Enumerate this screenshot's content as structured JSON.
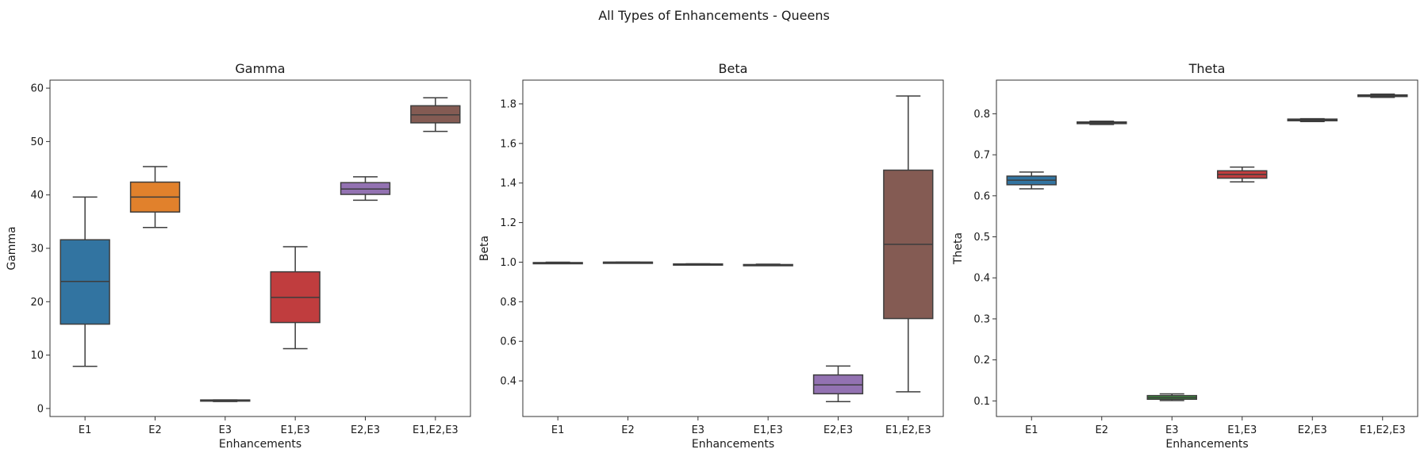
{
  "suptitle": "All Types of Enhancements - Queens",
  "chart_data": [
    {
      "type": "box",
      "title": "Gamma",
      "xlabel": "Enhancements",
      "ylabel": "Gamma",
      "ylim": [
        -1.5,
        61.5
      ],
      "yticks": [
        0,
        10,
        20,
        30,
        40,
        50,
        60
      ],
      "categories": [
        "E1",
        "E2",
        "E3",
        "E1,E3",
        "E2,E3",
        "E1,E2,E3"
      ],
      "boxes": [
        {
          "whislo": 7.9,
          "q1": 15.8,
          "med": 23.8,
          "q3": 31.6,
          "whishi": 39.6,
          "color": "#3274a1"
        },
        {
          "whislo": 33.9,
          "q1": 36.8,
          "med": 39.6,
          "q3": 42.4,
          "whishi": 45.3,
          "color": "#e1812c"
        },
        {
          "whislo": 1.3,
          "q1": 1.4,
          "med": 1.5,
          "q3": 1.6,
          "whishi": 1.6,
          "color": "#3a923a"
        },
        {
          "whislo": 11.2,
          "q1": 16.1,
          "med": 20.8,
          "q3": 25.6,
          "whishi": 30.3,
          "color": "#c03d3e"
        },
        {
          "whislo": 39.0,
          "q1": 40.1,
          "med": 41.1,
          "q3": 42.3,
          "whishi": 43.4,
          "color": "#9372b2"
        },
        {
          "whislo": 51.9,
          "q1": 53.5,
          "med": 55.0,
          "q3": 56.7,
          "whishi": 58.2,
          "color": "#845b53"
        }
      ]
    },
    {
      "type": "box",
      "title": "Beta",
      "xlabel": "Enhancements",
      "ylabel": "Beta",
      "ylim": [
        0.22,
        1.92
      ],
      "yticks": [
        0.4,
        0.6,
        0.8,
        1.0,
        1.2,
        1.4,
        1.6,
        1.8
      ],
      "categories": [
        "E1",
        "E2",
        "E3",
        "E1,E3",
        "E2,E3",
        "E1,E2,E3"
      ],
      "boxes": [
        {
          "whislo": 0.995,
          "q1": 0.996,
          "med": 0.997,
          "q3": 0.998,
          "whishi": 1.0,
          "color": "#3274a1"
        },
        {
          "whislo": 1.0,
          "q1": 1.0,
          "med": 1.0,
          "q3": 1.0,
          "whishi": 1.0,
          "color": "#e1812c"
        },
        {
          "whislo": 0.988,
          "q1": 0.989,
          "med": 0.99,
          "q3": 0.991,
          "whishi": 0.992,
          "color": "#3a923a"
        },
        {
          "whislo": 0.983,
          "q1": 0.985,
          "med": 0.986,
          "q3": 0.988,
          "whishi": 0.99,
          "color": "#c03d3e"
        },
        {
          "whislo": 0.295,
          "q1": 0.335,
          "med": 0.38,
          "q3": 0.43,
          "whishi": 0.475,
          "color": "#9372b2"
        },
        {
          "whislo": 0.345,
          "q1": 0.715,
          "med": 1.09,
          "q3": 1.465,
          "whishi": 1.84,
          "color": "#845b53"
        }
      ]
    },
    {
      "type": "box",
      "title": "Theta",
      "xlabel": "Enhancements",
      "ylabel": "Theta",
      "ylim": [
        0.062,
        0.882
      ],
      "yticks": [
        0.1,
        0.2,
        0.3,
        0.4,
        0.5,
        0.6,
        0.7,
        0.8
      ],
      "categories": [
        "E1",
        "E2",
        "E3",
        "E1,E3",
        "E2,E3",
        "E1,E2,E3"
      ],
      "boxes": [
        {
          "whislo": 0.617,
          "q1": 0.627,
          "med": 0.638,
          "q3": 0.648,
          "whishi": 0.658,
          "color": "#3274a1"
        },
        {
          "whislo": 0.774,
          "q1": 0.776,
          "med": 0.778,
          "q3": 0.78,
          "whishi": 0.782,
          "color": "#e1812c"
        },
        {
          "whislo": 0.101,
          "q1": 0.104,
          "med": 0.108,
          "q3": 0.113,
          "whishi": 0.117,
          "color": "#3a923a"
        },
        {
          "whislo": 0.634,
          "q1": 0.643,
          "med": 0.652,
          "q3": 0.661,
          "whishi": 0.67,
          "color": "#c03d3e"
        },
        {
          "whislo": 0.781,
          "q1": 0.783,
          "med": 0.785,
          "q3": 0.787,
          "whishi": 0.788,
          "color": "#9372b2"
        },
        {
          "whislo": 0.84,
          "q1": 0.842,
          "med": 0.844,
          "q3": 0.846,
          "whishi": 0.848,
          "color": "#845b53"
        }
      ]
    }
  ]
}
